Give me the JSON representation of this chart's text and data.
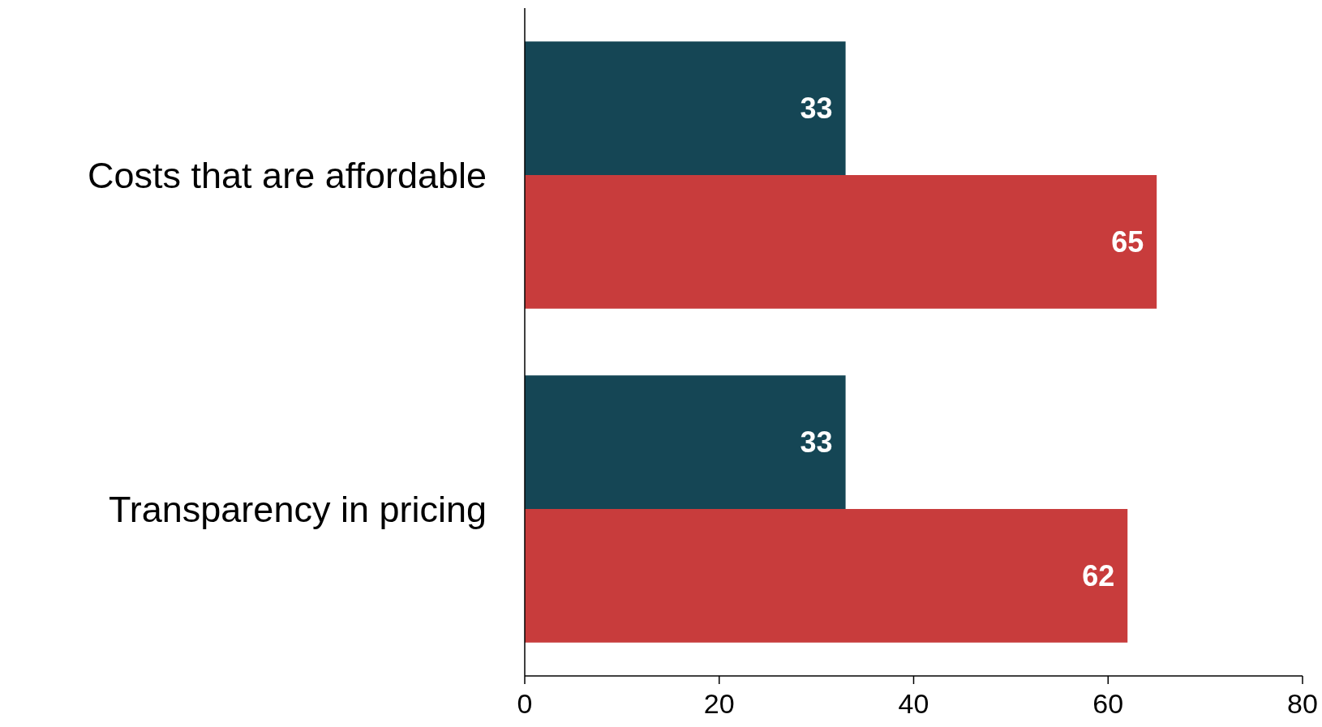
{
  "chart_data": {
    "type": "bar",
    "orientation": "horizontal",
    "categories": [
      "Costs that are affordable",
      "Transparency in pricing"
    ],
    "series": [
      {
        "color": "#154655",
        "values": [
          33,
          33
        ]
      },
      {
        "color": "#c83c3c",
        "values": [
          65,
          62
        ]
      }
    ],
    "xlim": [
      0,
      80
    ],
    "xticks": [
      0,
      20,
      40,
      60,
      80
    ],
    "data_labels": true,
    "grid": false
  }
}
